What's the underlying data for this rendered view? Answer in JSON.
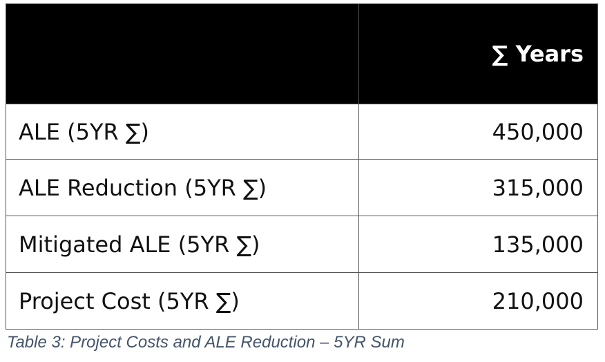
{
  "table": {
    "header": [
      "∑ Years"
    ],
    "rows": [
      [
        "ALE (5YR ∑)",
        "450,000"
      ],
      [
        "ALE Reduction (5YR ∑)",
        "315,000"
      ],
      [
        "Mitigated ALE (5YR ∑)",
        "135,000"
      ],
      [
        "Project Cost (5YR ∑)",
        "210,000"
      ]
    ]
  },
  "caption": "Table 3: Project Costs and ALE Reduction – 5YR Sum"
}
